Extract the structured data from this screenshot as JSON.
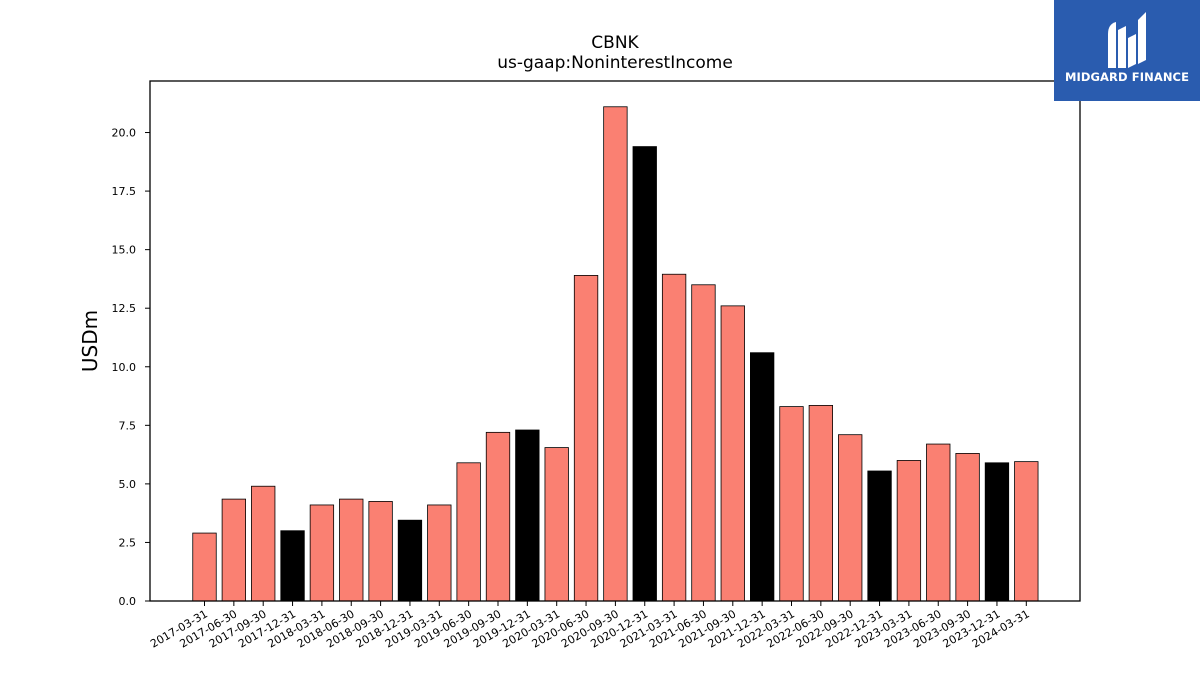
{
  "chart_data": {
    "type": "bar",
    "title": "CBNK",
    "subtitle": "us-gaap:NoninterestIncome",
    "ylabel": "USDm",
    "xlabel": "",
    "ylim": [
      0,
      22.2
    ],
    "yticks": [
      "0.0",
      "2.5",
      "5.0",
      "7.5",
      "10.0",
      "12.5",
      "15.0",
      "17.5",
      "20.0"
    ],
    "ytick_values": [
      0,
      2.5,
      5,
      7.5,
      10,
      12.5,
      15,
      17.5,
      20
    ],
    "grid": false,
    "categories": [
      "2017-03-31",
      "2017-06-30",
      "2017-09-30",
      "2017-12-31",
      "2018-03-31",
      "2018-06-30",
      "2018-09-30",
      "2018-12-31",
      "2019-03-31",
      "2019-06-30",
      "2019-09-30",
      "2019-12-31",
      "2020-03-31",
      "2020-06-30",
      "2020-09-30",
      "2020-12-31",
      "2021-03-31",
      "2021-06-30",
      "2021-09-30",
      "2021-12-31",
      "2022-03-31",
      "2022-06-30",
      "2022-09-30",
      "2022-12-31",
      "2023-03-31",
      "2023-06-30",
      "2023-09-30",
      "2023-12-31",
      "2024-03-31"
    ],
    "values": [
      2.9,
      4.35,
      4.9,
      3.0,
      4.1,
      4.35,
      4.25,
      3.45,
      4.1,
      5.9,
      7.2,
      7.3,
      6.55,
      13.9,
      21.1,
      19.4,
      13.95,
      13.5,
      12.6,
      10.6,
      8.3,
      8.35,
      7.1,
      5.55,
      6.0,
      6.7,
      6.3,
      5.9,
      5.95
    ],
    "highlight_color": "#000000",
    "bar_color": "#fa8072",
    "highlight_categories": [
      "2017-12-31",
      "2018-12-31",
      "2019-12-31",
      "2020-12-31",
      "2021-12-31",
      "2022-12-31",
      "2023-12-31"
    ]
  },
  "logo": {
    "text": "MIDGARD FINANCE",
    "icon": "midgard-logo-icon",
    "background": "#2a5caf"
  }
}
